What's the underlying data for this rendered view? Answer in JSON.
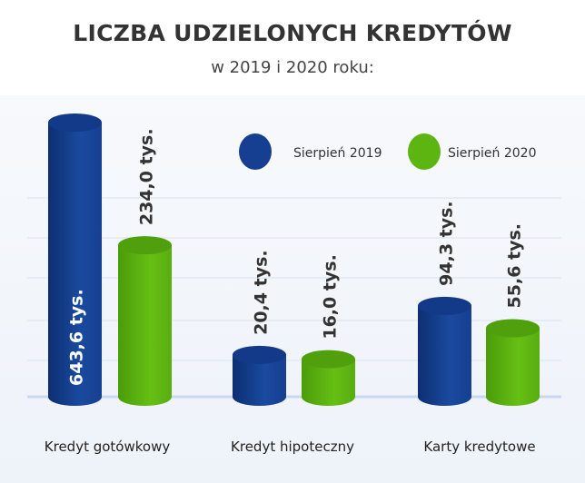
{
  "chart_data": {
    "type": "bar",
    "title": "LICZBA UDZIELONYCH KREDYTÓW",
    "subtitle": "w 2019 i 2020 roku:",
    "categories": [
      "Kredyt gotówkowy",
      "Kredyt hipoteczny",
      "Karty kredytowe"
    ],
    "series": [
      {
        "name": "Sierpień 2019",
        "values": [
          643.6,
          20.4,
          94.3
        ],
        "labels": [
          "643,6 tys.",
          "20,4 tys.",
          "94,3 tys."
        ],
        "color": "#163f91"
      },
      {
        "name": "Sierpień 2020",
        "values": [
          234.0,
          16.0,
          55.6
        ],
        "labels": [
          "234,0 tys.",
          "16,0 tys.",
          "55,6 tys."
        ],
        "color": "#5cb510"
      }
    ],
    "unit": "tys.",
    "legend": "top-right",
    "grid": true,
    "bar_style": "3d-cylinder"
  }
}
